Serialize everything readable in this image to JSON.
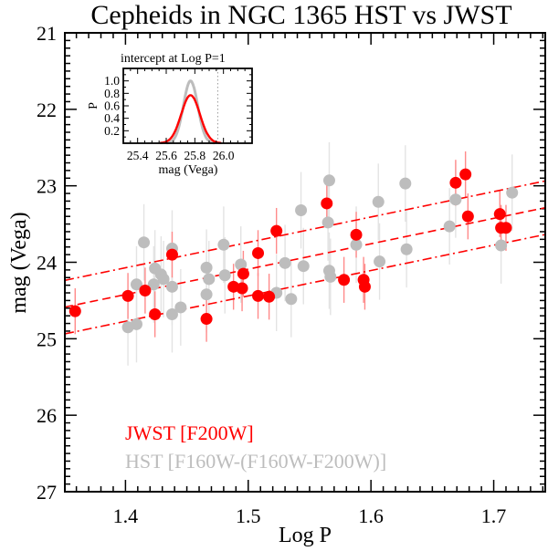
{
  "chart_data": {
    "type": "scatter",
    "title": "Cepheids in NGC 1365 HST vs JWST",
    "xlabel": "Log P",
    "ylabel": "mag (Vega)",
    "xlim": [
      1.3506,
      1.742
    ],
    "ylim": [
      27,
      21
    ],
    "y_inverted": true,
    "xticks": [
      "1.4",
      "1.5",
      "1.6",
      "1.7"
    ],
    "yticks": [
      "21",
      "22",
      "23",
      "24",
      "25",
      "26",
      "27"
    ],
    "grid": false,
    "legend_placement": "bottom-left",
    "colors": {
      "jwst": "#ff0000",
      "hst": "#bdbdbd",
      "jwst_err": "#ff8a8a",
      "hst_err": "#e3e3e3"
    },
    "series": [
      {
        "name": "JWST [F200W]",
        "color": "#ff0000",
        "err": 0.3,
        "points": [
          [
            1.359,
            24.64
          ],
          [
            1.402,
            24.44
          ],
          [
            1.416,
            24.37
          ],
          [
            1.424,
            24.68
          ],
          [
            1.438,
            23.9
          ],
          [
            1.466,
            24.74
          ],
          [
            1.488,
            24.32
          ],
          [
            1.496,
            24.15
          ],
          [
            1.495,
            24.34
          ],
          [
            1.508,
            24.44
          ],
          [
            1.517,
            24.45
          ],
          [
            1.523,
            23.59
          ],
          [
            1.508,
            23.88
          ],
          [
            1.564,
            23.23
          ],
          [
            1.588,
            23.64
          ],
          [
            1.578,
            24.23
          ],
          [
            1.594,
            24.23
          ],
          [
            1.595,
            24.32
          ],
          [
            1.669,
            22.96
          ],
          [
            1.677,
            22.85
          ],
          [
            1.679,
            23.4
          ],
          [
            1.705,
            23.37
          ],
          [
            1.706,
            23.55
          ],
          [
            1.71,
            23.55
          ]
        ]
      },
      {
        "name": "HST [F160W-(F160W-F200W)]",
        "color": "#bdbdbd",
        "err": 0.5,
        "points": [
          [
            1.415,
            23.74
          ],
          [
            1.438,
            23.82
          ],
          [
            1.409,
            24.29
          ],
          [
            1.424,
            24.08
          ],
          [
            1.429,
            24.16
          ],
          [
            1.431,
            24.22
          ],
          [
            1.423,
            24.29
          ],
          [
            1.438,
            24.32
          ],
          [
            1.445,
            24.59
          ],
          [
            1.438,
            24.68
          ],
          [
            1.402,
            24.85
          ],
          [
            1.409,
            24.81
          ],
          [
            1.466,
            24.07
          ],
          [
            1.468,
            24.22
          ],
          [
            1.466,
            24.42
          ],
          [
            1.48,
            23.77
          ],
          [
            1.481,
            24.17
          ],
          [
            1.494,
            24.03
          ],
          [
            1.53,
            24.01
          ],
          [
            1.523,
            24.4
          ],
          [
            1.535,
            24.48
          ],
          [
            1.543,
            23.32
          ],
          [
            1.545,
            24.05
          ],
          [
            1.566,
            22.93
          ],
          [
            1.565,
            23.48
          ],
          [
            1.566,
            24.11
          ],
          [
            1.567,
            24.19
          ],
          [
            1.588,
            23.77
          ],
          [
            1.606,
            23.21
          ],
          [
            1.607,
            23.99
          ],
          [
            1.628,
            22.97
          ],
          [
            1.629,
            23.83
          ],
          [
            1.664,
            23.53
          ],
          [
            1.669,
            23.18
          ],
          [
            1.706,
            23.78
          ],
          [
            1.715,
            23.09
          ]
        ]
      }
    ],
    "fit_lines": {
      "slope": -3.32,
      "intercept_at_logP_1": 25.75,
      "band_offset": 0.35,
      "color": "#ff0000"
    },
    "inset": {
      "title": "intercept at Log P=1",
      "xlabel": "mag (Vega)",
      "ylabel": "P",
      "xlim": [
        25.3,
        26.2
      ],
      "ylim": [
        0,
        1.2
      ],
      "xticks": [
        "25.4",
        "25.6",
        "25.8",
        "26.0"
      ],
      "yticks": [
        "0.2",
        "0.4",
        "0.6",
        "0.8",
        "1.0"
      ],
      "reference_line": 25.96,
      "curves": [
        {
          "color": "#bdbdbd",
          "mean": 25.77,
          "sigma": 0.05,
          "peak": 1.0
        },
        {
          "color": "#ff0000",
          "mean": 25.77,
          "sigma": 0.065,
          "peak": 0.77
        }
      ]
    }
  }
}
